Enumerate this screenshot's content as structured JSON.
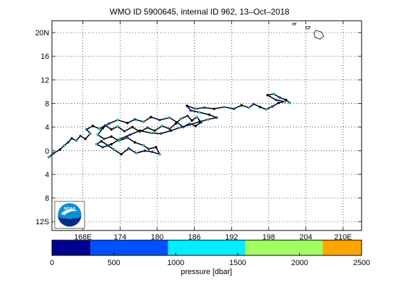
{
  "title": "WMO ID 5900645, internal ID 962, 13–Oct–2018",
  "map": {
    "lat_ticks": [
      {
        "value": 20,
        "label": "20N"
      },
      {
        "value": 16,
        "label": "16"
      },
      {
        "value": 12,
        "label": "12"
      },
      {
        "value": 8,
        "label": "8"
      },
      {
        "value": 4,
        "label": "4"
      },
      {
        "value": 0,
        "label": "0"
      },
      {
        "value": -4,
        "label": "4"
      },
      {
        "value": -8,
        "label": "8"
      },
      {
        "value": -12,
        "label": "12S"
      }
    ],
    "lon_ticks": [
      {
        "value": 168,
        "label": "168E"
      },
      {
        "value": 174,
        "label": "174"
      },
      {
        "value": 180,
        "label": "180"
      },
      {
        "value": 186,
        "label": "186"
      },
      {
        "value": 192,
        "label": "192"
      },
      {
        "value": 198,
        "label": "198"
      },
      {
        "value": 204,
        "label": "204"
      },
      {
        "value": 210,
        "label": "210E"
      }
    ],
    "lon_range": [
      163,
      213
    ],
    "lat_range": [
      -13.5,
      22
    ],
    "grid": "dotted",
    "track_color": "#000000",
    "track_lonlat": [
      [
        162.5,
        -1.1
      ],
      [
        163.3,
        -0.4
      ],
      [
        164.3,
        0.2
      ],
      [
        165.0,
        0.9
      ],
      [
        165.6,
        1.4
      ],
      [
        166.2,
        2.1
      ],
      [
        166.9,
        1.7
      ],
      [
        167.6,
        2.5
      ],
      [
        168.4,
        2.0
      ],
      [
        169.2,
        2.9
      ],
      [
        168.6,
        3.6
      ],
      [
        169.6,
        4.2
      ],
      [
        170.7,
        3.7
      ],
      [
        171.6,
        4.3
      ],
      [
        172.6,
        3.6
      ],
      [
        173.6,
        4.1
      ],
      [
        174.7,
        3.3
      ],
      [
        176.0,
        4.0
      ],
      [
        177.2,
        3.2
      ],
      [
        178.4,
        3.9
      ],
      [
        179.6,
        3.4
      ],
      [
        180.8,
        4.2
      ],
      [
        182.0,
        3.7
      ],
      [
        183.0,
        4.6
      ],
      [
        183.8,
        5.4
      ],
      [
        184.9,
        5.9
      ],
      [
        185.6,
        5.1
      ],
      [
        186.4,
        5.7
      ],
      [
        187.1,
        4.8
      ],
      [
        186.2,
        4.2
      ],
      [
        185.2,
        4.6
      ],
      [
        184.2,
        4.0
      ],
      [
        183.2,
        4.8
      ],
      [
        182.0,
        5.6
      ],
      [
        180.4,
        5.2
      ],
      [
        179.0,
        5.7
      ],
      [
        177.8,
        4.9
      ],
      [
        176.4,
        5.3
      ],
      [
        175.2,
        4.7
      ],
      [
        173.6,
        5.2
      ],
      [
        172.2,
        4.6
      ],
      [
        171.2,
        3.8
      ],
      [
        170.4,
        2.7
      ],
      [
        171.4,
        2.0
      ],
      [
        172.6,
        2.4
      ],
      [
        173.8,
        1.7
      ],
      [
        175.2,
        2.2
      ],
      [
        176.4,
        1.4
      ],
      [
        177.8,
        0.9
      ],
      [
        178.6,
        0.3
      ],
      [
        179.8,
        0.6
      ],
      [
        180.4,
        -0.6
      ],
      [
        179.2,
        -0.2
      ],
      [
        178.0,
        0.0
      ],
      [
        176.6,
        -0.4
      ],
      [
        175.4,
        0.4
      ],
      [
        174.2,
        -0.6
      ],
      [
        173.0,
        0.2
      ],
      [
        172.0,
        0.9
      ],
      [
        171.0,
        1.6
      ],
      [
        170.2,
        1.1
      ],
      [
        171.2,
        0.6
      ],
      [
        172.6,
        1.1
      ],
      [
        174.0,
        2.0
      ],
      [
        175.6,
        2.7
      ],
      [
        177.2,
        3.4
      ],
      [
        179.0,
        3.0
      ],
      [
        180.6,
        2.9
      ],
      [
        182.2,
        3.4
      ],
      [
        183.6,
        3.9
      ],
      [
        185.2,
        4.4
      ],
      [
        186.8,
        4.9
      ],
      [
        188.2,
        5.3
      ],
      [
        189.6,
        5.6
      ],
      [
        188.4,
        6.1
      ],
      [
        186.8,
        6.5
      ],
      [
        185.4,
        6.8
      ],
      [
        184.8,
        7.6
      ],
      [
        186.2,
        7.1
      ],
      [
        187.6,
        7.3
      ],
      [
        189.2,
        7.1
      ],
      [
        190.8,
        7.4
      ],
      [
        192.4,
        7.1
      ],
      [
        193.6,
        7.7
      ],
      [
        194.8,
        7.3
      ],
      [
        195.6,
        7.9
      ],
      [
        196.6,
        7.4
      ],
      [
        197.6,
        7.0
      ],
      [
        198.6,
        7.5
      ],
      [
        199.6,
        8.1
      ],
      [
        200.6,
        8.3
      ],
      [
        199.2,
        8.6
      ],
      [
        197.8,
        9.4
      ],
      [
        198.8,
        9.6
      ],
      [
        199.8,
        9.0
      ],
      [
        200.8,
        8.6
      ],
      [
        201.4,
        8.1
      ]
    ],
    "land": [
      {
        "name": "hawaii-island",
        "lonlat": [
          [
            205.6,
            20.4
          ],
          [
            206.5,
            20.1
          ],
          [
            206.9,
            19.4
          ],
          [
            206.3,
            18.9
          ],
          [
            205.5,
            19.2
          ],
          [
            205.3,
            19.9
          ]
        ]
      },
      {
        "name": "hawaii-maui",
        "lonlat": [
          [
            204.0,
            21.0
          ],
          [
            204.7,
            21.0
          ],
          [
            204.5,
            20.6
          ],
          [
            204.0,
            20.7
          ]
        ]
      },
      {
        "name": "hawaii-oahu",
        "lonlat": [
          [
            201.9,
            21.6
          ],
          [
            202.4,
            21.6
          ],
          [
            202.3,
            21.3
          ],
          [
            201.9,
            21.3
          ]
        ]
      }
    ]
  },
  "logo": {
    "text": "NOAA",
    "colors": {
      "sky": "#0a8fd4",
      "ocean": "#0a2a8a",
      "bird": "#ffffff"
    }
  },
  "colorbar": {
    "label": "pressure [dbar]",
    "min": 0,
    "max": 2500,
    "ticks": [
      "0",
      "500",
      "1000",
      "1500",
      "2000",
      "2500"
    ],
    "bins": [
      {
        "from": 0,
        "to": 312,
        "color": "#00008f"
      },
      {
        "from": 312,
        "to": 937,
        "color": "#0050ff"
      },
      {
        "from": 937,
        "to": 1562,
        "color": "#00eeff"
      },
      {
        "from": 1562,
        "to": 2187,
        "color": "#9fff60"
      },
      {
        "from": 2187,
        "to": 2500,
        "color": "#ffa500"
      }
    ]
  }
}
